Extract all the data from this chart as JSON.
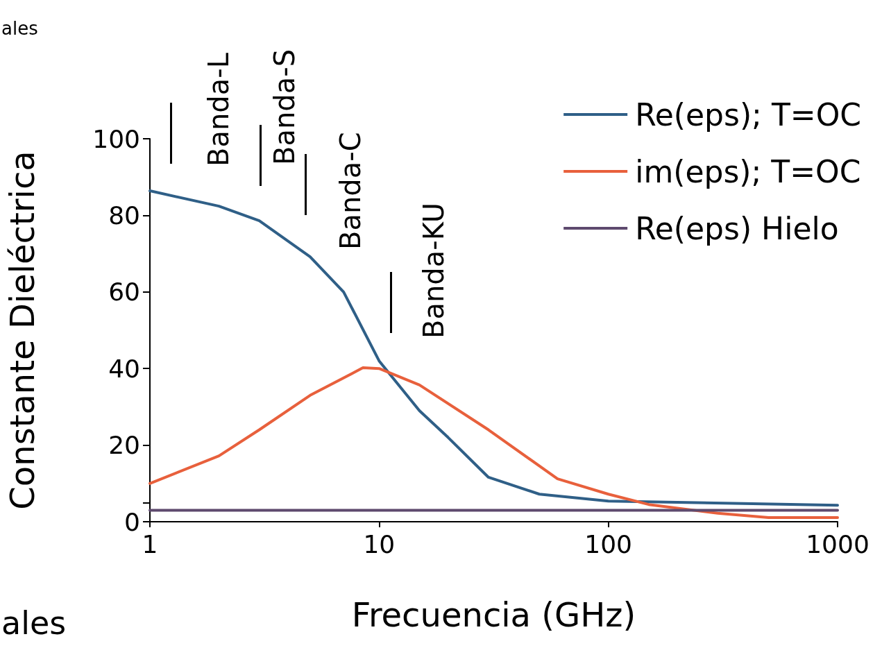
{
  "chart_data": {
    "type": "line",
    "xlabel": "Frecuencia (GHz)",
    "ylabel": "Constante Dieléctrica",
    "log": "x",
    "x": [
      1,
      2,
      3,
      5,
      7,
      10,
      15,
      20,
      30,
      50,
      100,
      1000
    ],
    "xlim": [
      1,
      1000
    ],
    "xticks": [
      1,
      10,
      100,
      1000
    ],
    "ylim": [
      0,
      100
    ],
    "yticks": [
      0,
      {
        "value": 5,
        "label": null
      },
      20,
      40,
      60,
      80,
      100
    ],
    "grid": false,
    "legend": "top right",
    "series": [
      {
        "name": "Re(eps); T=OC",
        "color": "#2f5f87",
        "values": [
          86.4,
          82.4,
          78.6,
          69.2,
          60,
          42,
          29,
          22,
          11.6,
          7.2,
          5.4,
          4.3
        ]
      },
      {
        "name": "im(eps); T=OC",
        "color": "#e8603c",
        "x": [
          1,
          2,
          3,
          5,
          8.5,
          10,
          15,
          30,
          60,
          100,
          150,
          300,
          500,
          1000
        ],
        "values": [
          10,
          17.2,
          24,
          33,
          40.2,
          40,
          35.7,
          24,
          11.2,
          7.2,
          4.5,
          2.2,
          1.1,
          1.1
        ]
      },
      {
        "name": "Re(eps) Hielo",
        "color": "#5e4a6e",
        "x": [
          1,
          1000
        ],
        "values": [
          3,
          3
        ]
      }
    ],
    "annotations": [
      "Banda-L",
      "Banda-S",
      "Banda-C",
      "Banda-KU",
      "ales",
      "ales"
    ]
  }
}
